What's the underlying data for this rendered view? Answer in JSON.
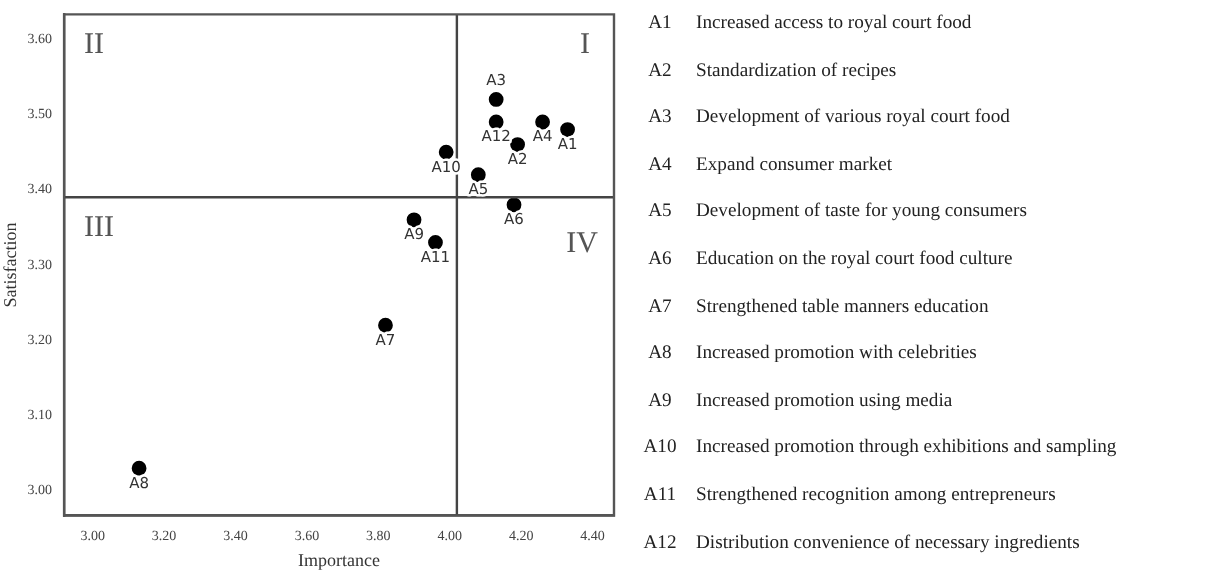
{
  "chart_data": {
    "type": "scatter",
    "xlabel": "Importance",
    "ylabel": "Satisfaction",
    "color": "#000000",
    "marker": "circle",
    "grid": false,
    "legend": false,
    "x": [
      4.33,
      4.19,
      4.13,
      4.26,
      4.08,
      4.18,
      3.82,
      3.13,
      3.9,
      3.99,
      3.96,
      4.13
    ],
    "values": [
      3.48,
      3.46,
      3.52,
      3.49,
      3.42,
      3.38,
      3.22,
      3.03,
      3.36,
      3.45,
      3.33,
      3.49
    ],
    "xlim": [
      2.92,
      4.46
    ],
    "ylim": [
      2.967,
      3.633
    ],
    "xticks": [
      {
        "value": 3,
        "label": "3.00"
      },
      {
        "value": 3.2,
        "label": "3.20"
      },
      {
        "value": 3.4,
        "label": "3.40"
      },
      {
        "value": 3.6,
        "label": "3.60"
      },
      {
        "value": 3.8,
        "label": "3.80"
      },
      {
        "value": 4,
        "label": "4.00"
      },
      {
        "value": 4.2,
        "label": "4.20"
      },
      {
        "value": 4.4,
        "label": "4.40"
      }
    ],
    "yticks": [
      {
        "value": 3,
        "label": "3.00"
      },
      {
        "value": 3.1,
        "label": "3.10"
      },
      {
        "value": 3.2,
        "label": "3.20"
      },
      {
        "value": 3.3,
        "label": "3.30"
      },
      {
        "value": 3.4,
        "label": "3.40"
      },
      {
        "value": 3.5,
        "label": "3.50"
      },
      {
        "value": 3.6,
        "label": "3.60"
      }
    ],
    "ref_lines": [
      {
        "axis": "x",
        "value": 4.02,
        "color": "#444444"
      },
      {
        "axis": "y",
        "value": 3.39,
        "color": "#444444"
      }
    ],
    "annotations": [
      "I",
      "II",
      "III",
      "IV",
      {
        "text": "A1",
        "x": 4.33,
        "y": 3.48
      },
      {
        "text": "A2",
        "x": 4.19,
        "y": 3.46
      },
      {
        "text": "A3",
        "x": 4.13,
        "y": 3.52
      },
      {
        "text": "A4",
        "x": 4.26,
        "y": 3.49
      },
      {
        "text": "A5",
        "x": 4.08,
        "y": 3.42
      },
      {
        "text": "A6",
        "x": 4.18,
        "y": 3.38
      },
      {
        "text": "A7",
        "x": 3.82,
        "y": 3.22
      },
      {
        "text": "A8",
        "x": 3.13,
        "y": 3.03
      },
      {
        "text": "A9",
        "x": 3.9,
        "y": 3.36
      },
      {
        "text": "A10",
        "x": 3.99,
        "y": 3.45
      },
      {
        "text": "A11",
        "x": 3.96,
        "y": 3.33
      },
      {
        "text": "A12",
        "x": 4.13,
        "y": 3.49
      },
      "A1 Increased access to royal court food",
      "A2 Standardization of recipes",
      "A3 Development of various royal court food",
      "A4 Expand consumer market",
      "A5 Development of taste for young consumers",
      "A6 Education on the royal court food culture",
      "A7 Strengthened table manners education",
      "A8 Increased promotion with celebrities",
      "A9 Increased promotion using media",
      "A10 Increased promotion through exhibitions and sampling",
      "A11 Strengthened recognition among entrepreneurs",
      "A12 Distribution convenience of necessary ingredients"
    ]
  }
}
